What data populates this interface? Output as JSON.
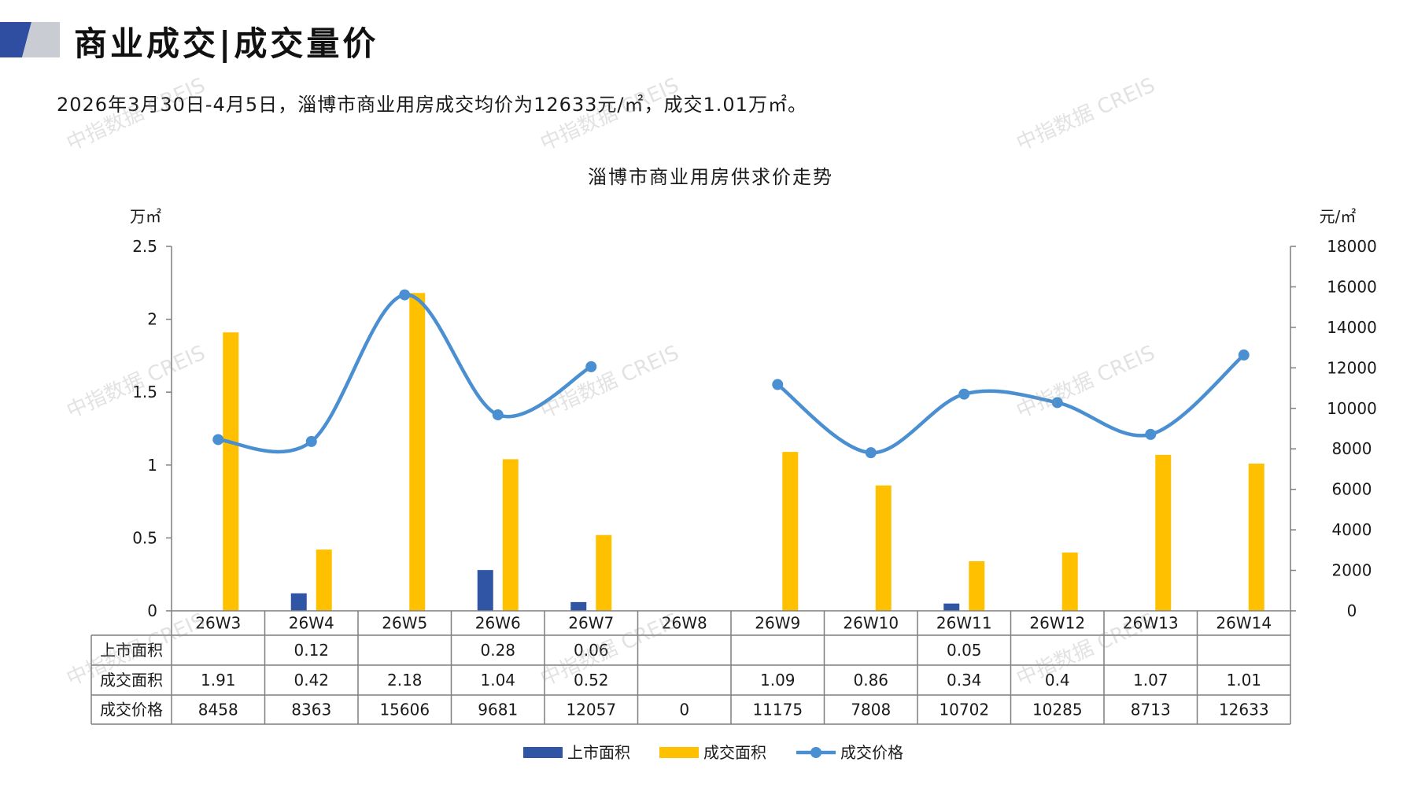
{
  "header": {
    "title": "商业成交|成交量价",
    "summary": "2026年3月30日-4月5日，淄博市商业用房成交均价为12633元/㎡，成交1.01万㎡。"
  },
  "watermark": "中指数据 CREIS",
  "colors": {
    "supply": "#2f55a4",
    "deal_area": "#ffc000",
    "price": "#4a8fd1",
    "logo_dark": "#2f4ea1",
    "logo_light": "#c9ccd3"
  },
  "chart_data": {
    "type": "bar+line",
    "title": "淄博市商业用房供求价走势",
    "ylabel_left": "万㎡",
    "ylabel_right": "元/㎡",
    "ylim_left": [
      0,
      2.5
    ],
    "ylim_right": [
      0,
      18000
    ],
    "yticks_left": [
      "0",
      "0.5",
      "1",
      "1.5",
      "2",
      "2.5"
    ],
    "yticks_right": [
      "0",
      "2000",
      "4000",
      "6000",
      "8000",
      "10000",
      "12000",
      "14000",
      "16000",
      "18000"
    ],
    "categories": [
      "26W3",
      "26W4",
      "26W5",
      "26W6",
      "26W7",
      "26W8",
      "26W9",
      "26W10",
      "26W11",
      "26W12",
      "26W13",
      "26W14"
    ],
    "series": [
      {
        "name": "上市面积",
        "kind": "bar",
        "axis": "left",
        "values": [
          null,
          0.12,
          null,
          0.28,
          0.06,
          null,
          null,
          null,
          0.05,
          null,
          null,
          null
        ],
        "labels": [
          "",
          "0.12",
          "",
          "0.28",
          "0.06",
          "",
          "",
          "",
          "0.05",
          "",
          "",
          ""
        ]
      },
      {
        "name": "成交面积",
        "kind": "bar",
        "axis": "left",
        "values": [
          1.91,
          0.42,
          2.18,
          1.04,
          0.52,
          null,
          1.09,
          0.86,
          0.34,
          0.4,
          1.07,
          1.01
        ],
        "labels": [
          "1.91",
          "0.42",
          "2.18",
          "1.04",
          "0.52",
          "",
          "1.09",
          "0.86",
          "0.34",
          "0.4",
          "1.07",
          "1.01"
        ]
      },
      {
        "name": "成交价格",
        "kind": "line",
        "axis": "right",
        "values": [
          8458,
          8363,
          15606,
          9681,
          12057,
          0,
          11175,
          7808,
          10702,
          10285,
          8713,
          12633
        ],
        "labels": [
          "8458",
          "8363",
          "15606",
          "9681",
          "12057",
          "0",
          "11175",
          "7808",
          "10702",
          "10285",
          "8713",
          "12633"
        ],
        "plotted": [
          true,
          true,
          true,
          true,
          true,
          false,
          true,
          true,
          true,
          true,
          true,
          true
        ]
      }
    ],
    "legend": [
      "上市面积",
      "成交面积",
      "成交价格"
    ],
    "legend_position": "bottom",
    "grid": false,
    "data_table": true
  }
}
